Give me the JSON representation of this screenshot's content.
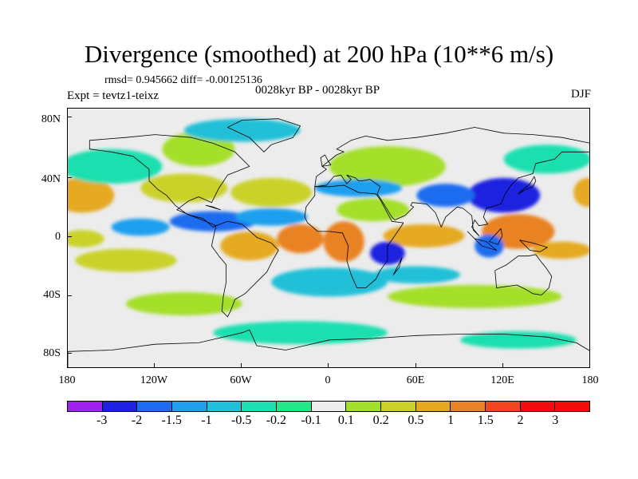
{
  "title": "Divergence (smoothed) at 200 hPa (10**6 m/s)",
  "stats": "rmsd= 0.945662 diff= -0.00125136",
  "subtitle": "0028kyr BP - 0028kyr BP",
  "experiment": "Expt = tevtz1-teixz",
  "season": "DJF",
  "map": {
    "projection": "cylindrical equidistant",
    "lon_range": [
      -180,
      180
    ],
    "lat_range": [
      -90,
      90
    ],
    "lat_labels": [
      "80N",
      "40N",
      "0",
      "40S",
      "80S"
    ],
    "lon_labels": [
      "180",
      "120W",
      "60W",
      "0",
      "60E",
      "120E",
      "180"
    ],
    "blobs": [
      {
        "lon": -170,
        "lat": 30,
        "rx": 22,
        "ry": 12,
        "level": 10
      },
      {
        "lon": 178,
        "lat": 32,
        "rx": 10,
        "ry": 10,
        "level": 10
      },
      {
        "lon": -100,
        "lat": 35,
        "rx": 30,
        "ry": 10,
        "level": 9
      },
      {
        "lon": -40,
        "lat": 32,
        "rx": 28,
        "ry": 10,
        "level": 9
      },
      {
        "lon": 30,
        "lat": 20,
        "rx": 25,
        "ry": 8,
        "level": 8
      },
      {
        "lon": 40,
        "lat": 50,
        "rx": 40,
        "ry": 14,
        "level": 8
      },
      {
        "lon": -90,
        "lat": 62,
        "rx": 25,
        "ry": 12,
        "level": 8
      },
      {
        "lon": -20,
        "lat": 0,
        "rx": 16,
        "ry": 10,
        "level": 11
      },
      {
        "lon": 10,
        "lat": -2,
        "rx": 14,
        "ry": 14,
        "level": 11
      },
      {
        "lon": -55,
        "lat": -5,
        "rx": 20,
        "ry": 10,
        "level": 10
      },
      {
        "lon": 65,
        "lat": 2,
        "rx": 28,
        "ry": 8,
        "level": 10
      },
      {
        "lon": 130,
        "lat": 5,
        "rx": 25,
        "ry": 12,
        "level": 11
      },
      {
        "lon": 160,
        "lat": -8,
        "rx": 20,
        "ry": 6,
        "level": 10
      },
      {
        "lon": -140,
        "lat": -15,
        "rx": 35,
        "ry": 8,
        "level": 9
      },
      {
        "lon": -170,
        "lat": 0,
        "rx": 15,
        "ry": 6,
        "level": 9
      },
      {
        "lon": -100,
        "lat": -45,
        "rx": 40,
        "ry": 8,
        "level": 8
      },
      {
        "lon": 100,
        "lat": -40,
        "rx": 60,
        "ry": 8,
        "level": 8
      },
      {
        "lon": -80,
        "lat": 12,
        "rx": 30,
        "ry": 7,
        "level": 2
      },
      {
        "lon": -130,
        "lat": 8,
        "rx": 20,
        "ry": 6,
        "level": 3
      },
      {
        "lon": 120,
        "lat": 30,
        "rx": 25,
        "ry": 12,
        "level": 1
      },
      {
        "lon": 80,
        "lat": 30,
        "rx": 20,
        "ry": 8,
        "level": 2
      },
      {
        "lon": 40,
        "lat": -10,
        "rx": 12,
        "ry": 8,
        "level": 1
      },
      {
        "lon": 110,
        "lat": -5,
        "rx": 10,
        "ry": 8,
        "level": 2
      },
      {
        "lon": -40,
        "lat": 15,
        "rx": 25,
        "ry": 6,
        "level": 3
      },
      {
        "lon": 20,
        "lat": 35,
        "rx": 30,
        "ry": 6,
        "level": 3
      },
      {
        "lon": 0,
        "lat": -30,
        "rx": 40,
        "ry": 10,
        "level": 4
      },
      {
        "lon": -150,
        "lat": 50,
        "rx": 35,
        "ry": 12,
        "level": 5
      },
      {
        "lon": 150,
        "lat": 55,
        "rx": 30,
        "ry": 10,
        "level": 5
      },
      {
        "lon": -20,
        "lat": -65,
        "rx": 60,
        "ry": 8,
        "level": 5
      },
      {
        "lon": 130,
        "lat": -70,
        "rx": 40,
        "ry": 6,
        "level": 5
      },
      {
        "lon": 60,
        "lat": -25,
        "rx": 30,
        "ry": 6,
        "level": 4
      },
      {
        "lon": -60,
        "lat": 75,
        "rx": 40,
        "ry": 8,
        "level": 4
      }
    ],
    "land": [
      [
        [
          -165,
          68
        ],
        [
          -140,
          70
        ],
        [
          -120,
          72
        ],
        [
          -95,
          70
        ],
        [
          -80,
          66
        ],
        [
          -65,
          60
        ],
        [
          -55,
          50
        ],
        [
          -70,
          44
        ],
        [
          -76,
          35
        ],
        [
          -81,
          25
        ],
        [
          -90,
          29
        ],
        [
          -97,
          26
        ],
        [
          -105,
          20
        ],
        [
          -95,
          16
        ],
        [
          -87,
          14
        ],
        [
          -80,
          8
        ],
        [
          -78,
          9
        ],
        [
          -85,
          12
        ],
        [
          -98,
          17
        ],
        [
          -106,
          23
        ],
        [
          -112,
          30
        ],
        [
          -118,
          34
        ],
        [
          -124,
          40
        ],
        [
          -124,
          48
        ],
        [
          -135,
          57
        ],
        [
          -150,
          60
        ],
        [
          -165,
          62
        ],
        [
          -165,
          68
        ]
      ],
      [
        [
          -78,
          9
        ],
        [
          -70,
          12
        ],
        [
          -60,
          10
        ],
        [
          -50,
          1
        ],
        [
          -40,
          -3
        ],
        [
          -35,
          -8
        ],
        [
          -39,
          -15
        ],
        [
          -43,
          -23
        ],
        [
          -48,
          -28
        ],
        [
          -55,
          -35
        ],
        [
          -58,
          -38
        ],
        [
          -65,
          -42
        ],
        [
          -68,
          -50
        ],
        [
          -70,
          -54
        ],
        [
          -74,
          -50
        ],
        [
          -73,
          -40
        ],
        [
          -71,
          -30
        ],
        [
          -71,
          -18
        ],
        [
          -76,
          -12
        ],
        [
          -81,
          -5
        ],
        [
          -80,
          0
        ],
        [
          -78,
          9
        ]
      ],
      [
        [
          -45,
          60
        ],
        [
          -40,
          65
        ],
        [
          -25,
          70
        ],
        [
          -20,
          78
        ],
        [
          -35,
          83
        ],
        [
          -60,
          82
        ],
        [
          -70,
          77
        ],
        [
          -55,
          70
        ],
        [
          -50,
          65
        ],
        [
          -45,
          60
        ]
      ],
      [
        [
          -10,
          36
        ],
        [
          0,
          36
        ],
        [
          10,
          37
        ],
        [
          20,
          32
        ],
        [
          32,
          31
        ],
        [
          35,
          27
        ],
        [
          43,
          12
        ],
        [
          51,
          11
        ],
        [
          45,
          2
        ],
        [
          40,
          -5
        ],
        [
          40,
          -15
        ],
        [
          35,
          -22
        ],
        [
          32,
          -28
        ],
        [
          25,
          -34
        ],
        [
          19,
          -34
        ],
        [
          15,
          -25
        ],
        [
          12,
          -15
        ],
        [
          13,
          -5
        ],
        [
          9,
          4
        ],
        [
          0,
          5
        ],
        [
          -8,
          5
        ],
        [
          -15,
          11
        ],
        [
          -17,
          15
        ],
        [
          -16,
          22
        ],
        [
          -10,
          30
        ],
        [
          -10,
          36
        ]
      ],
      [
        [
          -10,
          36
        ],
        [
          -9,
          43
        ],
        [
          -2,
          48
        ],
        [
          -5,
          50
        ],
        [
          5,
          58
        ],
        [
          10,
          60
        ],
        [
          5,
          62
        ],
        [
          15,
          68
        ],
        [
          25,
          71
        ],
        [
          40,
          68
        ],
        [
          60,
          70
        ],
        [
          80,
          73
        ],
        [
          100,
          77
        ],
        [
          120,
          73
        ],
        [
          140,
          72
        ],
        [
          160,
          70
        ],
        [
          180,
          66
        ],
        [
          180,
          60
        ],
        [
          160,
          60
        ],
        [
          155,
          55
        ],
        [
          142,
          52
        ],
        [
          140,
          45
        ],
        [
          130,
          42
        ],
        [
          125,
          37
        ],
        [
          121,
          31
        ],
        [
          118,
          24
        ],
        [
          108,
          21
        ],
        [
          106,
          15
        ],
        [
          109,
          10
        ],
        [
          103,
          9
        ],
        [
          100,
          13
        ],
        [
          98,
          8
        ],
        [
          103,
          2
        ],
        [
          99,
          6
        ],
        [
          98,
          16
        ],
        [
          92,
          21
        ],
        [
          88,
          22
        ],
        [
          80,
          15
        ],
        [
          77,
          8
        ],
        [
          73,
          18
        ],
        [
          67,
          24
        ],
        [
          57,
          25
        ],
        [
          56,
          23
        ],
        [
          58,
          22
        ],
        [
          52,
          16
        ],
        [
          45,
          13
        ],
        [
          43,
          15
        ],
        [
          35,
          28
        ],
        [
          33,
          31
        ],
        [
          35,
          36
        ],
        [
          28,
          41
        ],
        [
          22,
          40
        ],
        [
          20,
          40
        ],
        [
          18,
          42
        ],
        [
          12,
          44
        ],
        [
          15,
          41
        ],
        [
          12,
          38
        ],
        [
          8,
          44
        ],
        [
          3,
          43
        ],
        [
          -2,
          37
        ],
        [
          -10,
          36
        ]
      ],
      [
        [
          114,
          -22
        ],
        [
          122,
          -18
        ],
        [
          130,
          -12
        ],
        [
          137,
          -12
        ],
        [
          142,
          -11
        ],
        [
          145,
          -15
        ],
        [
          149,
          -20
        ],
        [
          153,
          -26
        ],
        [
          151,
          -34
        ],
        [
          146,
          -39
        ],
        [
          140,
          -38
        ],
        [
          135,
          -35
        ],
        [
          129,
          -32
        ],
        [
          115,
          -34
        ],
        [
          114,
          -22
        ]
      ],
      [
        [
          -180,
          -78
        ],
        [
          -150,
          -77
        ],
        [
          -120,
          -73
        ],
        [
          -90,
          -72
        ],
        [
          -60,
          -65
        ],
        [
          -55,
          -63
        ],
        [
          -50,
          -74
        ],
        [
          -30,
          -77
        ],
        [
          0,
          -70
        ],
        [
          30,
          -69
        ],
        [
          60,
          -67
        ],
        [
          90,
          -66
        ],
        [
          120,
          -66
        ],
        [
          150,
          -68
        ],
        [
          170,
          -72
        ],
        [
          180,
          -78
        ],
        [
          180,
          -90
        ],
        [
          -180,
          -90
        ],
        [
          -180,
          -78
        ]
      ],
      [
        [
          95,
          5
        ],
        [
          105,
          -5
        ],
        [
          115,
          -8
        ],
        [
          108,
          -2
        ],
        [
          100,
          0
        ],
        [
          95,
          5
        ]
      ],
      [
        [
          110,
          -2
        ],
        [
          118,
          7
        ],
        [
          119,
          2
        ],
        [
          116,
          -4
        ],
        [
          110,
          -2
        ]
      ],
      [
        [
          131,
          -1
        ],
        [
          140,
          -3
        ],
        [
          150,
          -6
        ],
        [
          145,
          -9
        ],
        [
          138,
          -8
        ],
        [
          131,
          -1
        ]
      ],
      [
        [
          130,
          31
        ],
        [
          135,
          34
        ],
        [
          140,
          36
        ],
        [
          142,
          40
        ],
        [
          141,
          43
        ],
        [
          138,
          38
        ],
        [
          132,
          33
        ],
        [
          130,
          31
        ]
      ],
      [
        [
          44,
          -25
        ],
        [
          49,
          -15
        ],
        [
          50,
          -13
        ],
        [
          48,
          -20
        ],
        [
          44,
          -25
        ]
      ],
      [
        [
          -5,
          50
        ],
        [
          1,
          51
        ],
        [
          -1,
          54
        ],
        [
          -3,
          58
        ],
        [
          -6,
          56
        ],
        [
          -5,
          50
        ]
      ],
      [
        [
          -85,
          23
        ],
        [
          -75,
          20
        ],
        [
          -80,
          22
        ],
        [
          -85,
          23
        ]
      ]
    ]
  },
  "colorbar": {
    "labels": [
      "-3",
      "-2",
      "-1.5",
      "-1",
      "-0.5",
      "-0.2",
      "-0.1",
      "0.1",
      "0.2",
      "0.5",
      "1",
      "1.5",
      "2",
      "3"
    ],
    "colors": [
      "#a020f0",
      "#1e22e0",
      "#1e6cf0",
      "#1f9fee",
      "#20c0d8",
      "#1edfb0",
      "#22e687",
      "#ececec",
      "#a4df2c",
      "#cad22a",
      "#e5a920",
      "#e98224",
      "#f04520",
      "#f40b10",
      "#f20c0c"
    ]
  }
}
